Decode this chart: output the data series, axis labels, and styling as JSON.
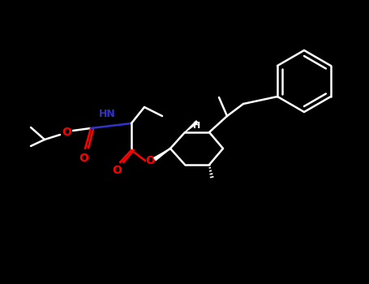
{
  "bg_color": "#000000",
  "line_color": "#ffffff",
  "N_color": "#3333cc",
  "O_color": "#ff0000",
  "lw": 1.8,
  "fig_width": 4.55,
  "fig_height": 3.5,
  "dpi": 100,
  "xlim": [
    0,
    455
  ],
  "ylim": [
    0,
    350
  ]
}
